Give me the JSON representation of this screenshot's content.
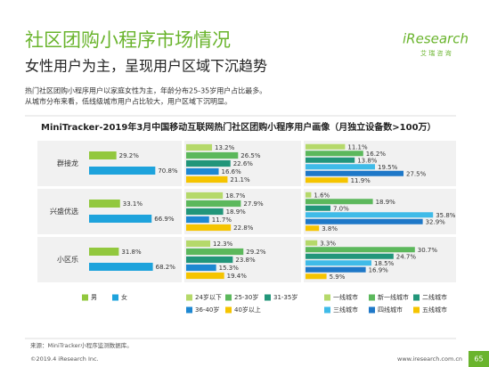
{
  "header": {
    "title": "社区团购小程序市场情况",
    "subtitle": "女性用户为主，呈现用户区域下沉趋势",
    "description": [
      "热门社区团购小程序用户以家庭女性为主，年龄分布25-35岁用户占比最多。",
      "从城市分布来看，低线级城市用户占比较大，用户区域下沉明显。"
    ]
  },
  "logo": {
    "name": "iResearch",
    "tagline": "艾 瑞 咨 询"
  },
  "figure_title": "MiniTracker-2019年3月中国移动互联网热门社区团购小程序用户画像（月独立设备数>100万）",
  "chart_data": [
    {
      "type": "bar",
      "orientation": "horizontal",
      "categories": [
        "群接龙",
        "兴盛优选",
        "小区乐"
      ],
      "series": [
        {
          "name": "男",
          "color": "#92c83e",
          "values": [
            29.2,
            33.1,
            31.8
          ],
          "value_labels": [
            "29.2%",
            "33.1%",
            "31.8%"
          ]
        },
        {
          "name": "女",
          "color": "#1ea3dc",
          "values": [
            70.8,
            66.9,
            68.2
          ],
          "value_labels": [
            "70.8%",
            "66.9%",
            "68.2%"
          ]
        }
      ]
    },
    {
      "type": "bar",
      "orientation": "horizontal",
      "series": [
        {
          "name": "24岁以下",
          "color": "#b5d96a",
          "values": [
            13.2,
            18.7,
            12.3
          ],
          "value_labels": [
            "13.2%",
            "18.7%",
            "12.3%"
          ]
        },
        {
          "name": "25-30岁",
          "color": "#5cb85c",
          "values": [
            26.5,
            27.9,
            29.2
          ],
          "value_labels": [
            "26.5%",
            "27.9%",
            "29.2%"
          ]
        },
        {
          "name": "31-35岁",
          "color": "#22967a",
          "values": [
            22.6,
            18.9,
            23.8
          ],
          "value_labels": [
            "22.6%",
            "18.9%",
            "23.8%"
          ]
        },
        {
          "name": "36-40岁",
          "color": "#1e88d2",
          "values": [
            16.6,
            11.7,
            15.3
          ],
          "value_labels": [
            "16.6%",
            "11.7%",
            "15.3%"
          ]
        },
        {
          "name": "40岁以上",
          "color": "#f5c400",
          "values": [
            21.1,
            22.8,
            19.4
          ],
          "value_labels": [
            "21.1%",
            "22.8%",
            "19.4%"
          ]
        }
      ]
    },
    {
      "type": "bar",
      "orientation": "horizontal",
      "series": [
        {
          "name": "一线城市",
          "color": "#b5d96a",
          "values": [
            11.1,
            1.6,
            3.3
          ],
          "value_labels": [
            "11.1%",
            "1.6%",
            "3.3%"
          ]
        },
        {
          "name": "新一线城市",
          "color": "#5cb85c",
          "values": [
            16.2,
            18.9,
            30.7
          ],
          "value_labels": [
            "16.2%",
            "18.9%",
            "30.7%"
          ]
        },
        {
          "name": "二线城市",
          "color": "#22967a",
          "values": [
            13.8,
            7,
            24.7
          ],
          "value_labels": [
            "13.8%",
            "7.0%",
            "24.7%"
          ]
        },
        {
          "name": "三线城市",
          "color": "#3fbbe8",
          "values": [
            19.5,
            35.8,
            18.5
          ],
          "value_labels": [
            "19.5%",
            "35.8%",
            "18.5%"
          ]
        },
        {
          "name": "四线城市",
          "color": "#1e78c8",
          "values": [
            27.5,
            32.9,
            16.9
          ],
          "value_labels": [
            "27.5%",
            "32.9%",
            "16.9%"
          ]
        },
        {
          "name": "五线城市",
          "color": "#f5c400",
          "values": [
            11.9,
            3.8,
            5.9
          ],
          "value_labels": [
            "11.9%",
            "3.8%",
            "5.9%"
          ]
        }
      ]
    }
  ],
  "footer": {
    "source": "来源：MiniTracker小程序监测数据库。",
    "copyright": "©2019.4 iResearch Inc.",
    "website": "www.iresearch.com.cn",
    "page": "65"
  }
}
